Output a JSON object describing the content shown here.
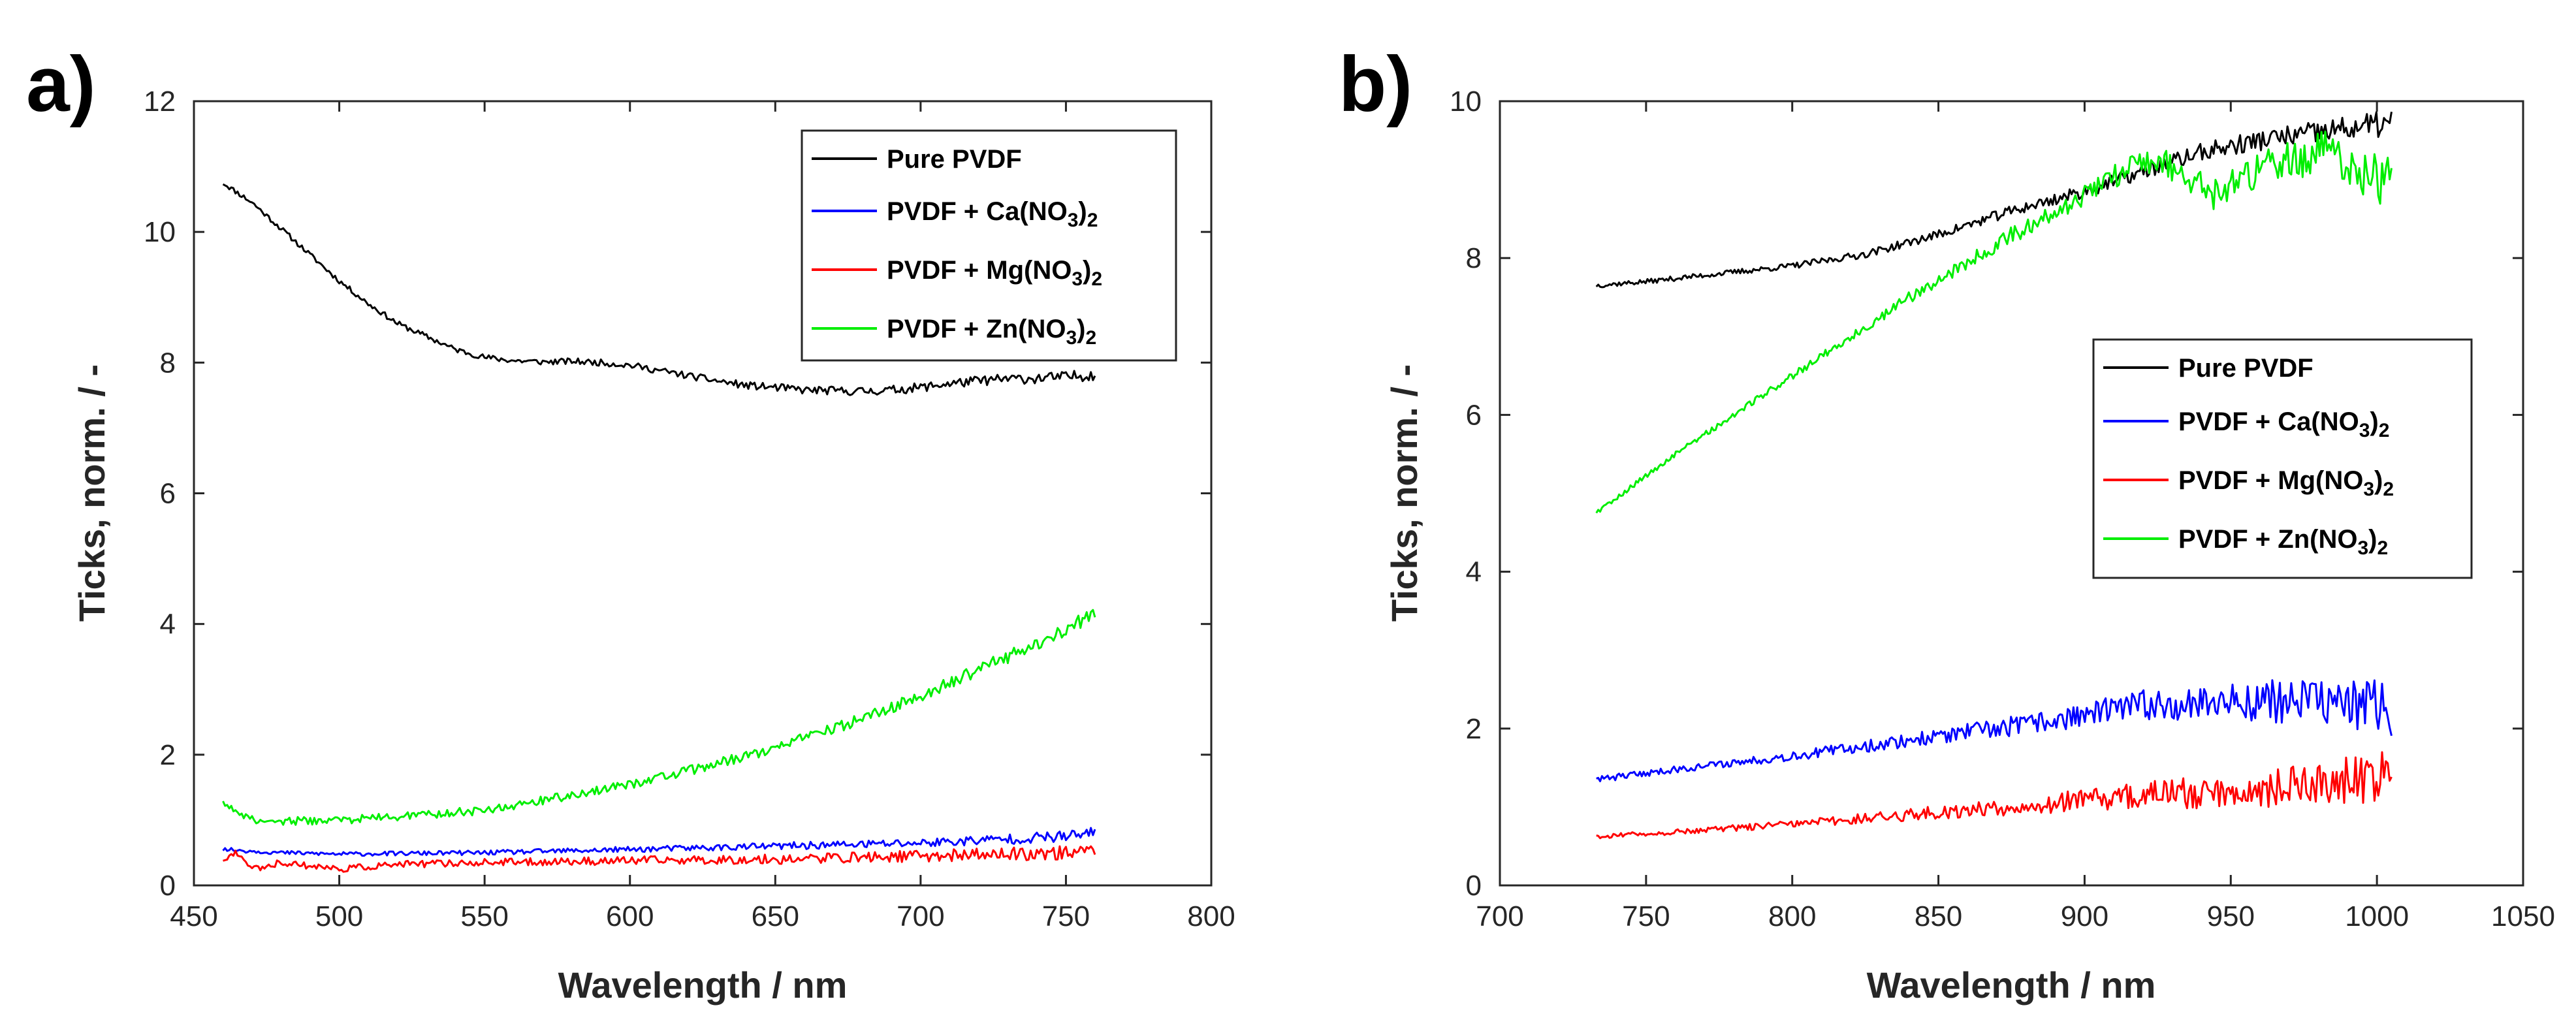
{
  "chart_data": [
    {
      "type": "line",
      "panel_label": "a)",
      "xlabel": "Wavelength / nm",
      "ylabel": "Ticks, norm. / -",
      "xlim": [
        450,
        800
      ],
      "ylim": [
        0,
        12
      ],
      "xticks": [
        450,
        500,
        550,
        600,
        650,
        700,
        750,
        800
      ],
      "yticks": [
        0,
        2,
        4,
        6,
        8,
        10,
        12
      ],
      "legend_position": "top-right",
      "series": [
        {
          "name": "Pure PVDF",
          "color": "#000000",
          "noise": 0.04,
          "noise_growth": 0.3,
          "x": [
            460,
            470,
            480,
            490,
            500,
            510,
            520,
            530,
            540,
            550,
            560,
            570,
            580,
            590,
            600,
            610,
            620,
            630,
            640,
            650,
            660,
            670,
            680,
            690,
            700,
            710,
            720,
            730,
            740,
            750,
            760
          ],
          "y": [
            10.75,
            10.45,
            10.05,
            9.65,
            9.25,
            8.9,
            8.6,
            8.4,
            8.2,
            8.08,
            8.03,
            8.01,
            8.02,
            8.0,
            7.96,
            7.88,
            7.8,
            7.72,
            7.65,
            7.62,
            7.58,
            7.57,
            7.56,
            7.58,
            7.62,
            7.68,
            7.72,
            7.75,
            7.76,
            7.78,
            7.82
          ]
        },
        {
          "name": "PVDF + Ca(NO3)2",
          "label_main": "PVDF + Ca(NO",
          "label_sub1": "3",
          "label_mid": ")",
          "label_sub2": "2",
          "color": "#0000ff",
          "noise": 0.03,
          "noise_growth": 0.5,
          "x": [
            460,
            480,
            500,
            550,
            600,
            650,
            700,
            750,
            760
          ],
          "y": [
            0.55,
            0.5,
            0.48,
            0.5,
            0.55,
            0.6,
            0.65,
            0.75,
            0.8
          ]
        },
        {
          "name": "PVDF + Mg(NO3)2",
          "label_main": "PVDF + Mg(NO",
          "label_sub1": "3",
          "label_mid": ")",
          "label_sub2": "2",
          "color": "#ff0000",
          "noise": 0.05,
          "noise_growth": 0.3,
          "x": [
            460,
            465,
            470,
            475,
            480,
            490,
            500,
            520,
            550,
            600,
            650,
            700,
            750,
            760
          ],
          "y": [
            0.4,
            0.5,
            0.25,
            0.3,
            0.35,
            0.3,
            0.25,
            0.32,
            0.35,
            0.38,
            0.4,
            0.45,
            0.5,
            0.55
          ]
        },
        {
          "name": "PVDF + Zn(NO3)2",
          "label_main": "PVDF + Zn(NO",
          "label_sub1": "3",
          "label_mid": ")",
          "label_sub2": "2",
          "color": "#00ee00",
          "noise": 0.06,
          "noise_growth": 0.2,
          "x": [
            460,
            465,
            470,
            480,
            500,
            520,
            550,
            580,
            600,
            620,
            650,
            680,
            700,
            720,
            740,
            760
          ],
          "y": [
            1.25,
            1.15,
            1.0,
            0.98,
            1.0,
            1.05,
            1.15,
            1.38,
            1.55,
            1.75,
            2.1,
            2.55,
            2.9,
            3.3,
            3.7,
            4.15
          ]
        }
      ]
    },
    {
      "type": "line",
      "panel_label": "b)",
      "xlabel": "Wavelength / nm",
      "ylabel": "Ticks, norm. / -",
      "xlim": [
        700,
        1050
      ],
      "ylim": [
        0,
        10
      ],
      "xticks": [
        700,
        750,
        800,
        850,
        900,
        950,
        1000,
        1050
      ],
      "yticks": [
        0,
        2,
        4,
        6,
        8,
        10
      ],
      "legend_position": "right",
      "series": [
        {
          "name": "Pure PVDF",
          "color": "#000000",
          "noise": 0.03,
          "noise_growth": 1.2,
          "x": [
            733,
            750,
            775,
            800,
            825,
            850,
            875,
            900,
            920,
            940,
            960,
            980,
            1000,
            1005
          ],
          "y": [
            7.65,
            7.7,
            7.8,
            7.9,
            8.05,
            8.3,
            8.6,
            8.85,
            9.1,
            9.35,
            9.5,
            9.6,
            9.7,
            9.72
          ]
        },
        {
          "name": "PVDF + Ca(NO3)2",
          "label_main": "PVDF + Ca(NO",
          "label_sub1": "3",
          "label_mid": ")",
          "label_sub2": "2",
          "color": "#0000ff",
          "noise": 0.04,
          "noise_growth": 2.0,
          "x": [
            733,
            760,
            800,
            840,
            880,
            920,
            950,
            980,
            1005
          ],
          "y": [
            1.35,
            1.48,
            1.65,
            1.85,
            2.05,
            2.3,
            2.35,
            2.35,
            2.25
          ]
        },
        {
          "name": "PVDF + Mg(NO3)2",
          "label_main": "PVDF + Mg(NO",
          "label_sub1": "3",
          "label_mid": ")",
          "label_sub2": "2",
          "color": "#ff0000",
          "noise": 0.03,
          "noise_growth": 2.5,
          "x": [
            733,
            760,
            800,
            840,
            880,
            920,
            950,
            980,
            1005
          ],
          "y": [
            0.62,
            0.68,
            0.78,
            0.9,
            1.02,
            1.15,
            1.2,
            1.3,
            1.4
          ]
        },
        {
          "name": "PVDF + Zn(NO3)2",
          "label_main": "PVDF + Zn(NO",
          "label_sub1": "3",
          "label_mid": ")",
          "label_sub2": "2",
          "color": "#00ee00",
          "noise": 0.03,
          "noise_growth": 2.5,
          "x": [
            733,
            760,
            780,
            800,
            820,
            840,
            860,
            880,
            900,
            915,
            925,
            935,
            945,
            955,
            965,
            975,
            985,
            995,
            1005
          ],
          "y": [
            4.75,
            5.5,
            6.0,
            6.5,
            7.0,
            7.5,
            7.95,
            8.4,
            8.8,
            9.15,
            9.25,
            9.05,
            8.8,
            9.0,
            9.2,
            9.3,
            9.35,
            9.05,
            8.95
          ]
        }
      ]
    }
  ]
}
